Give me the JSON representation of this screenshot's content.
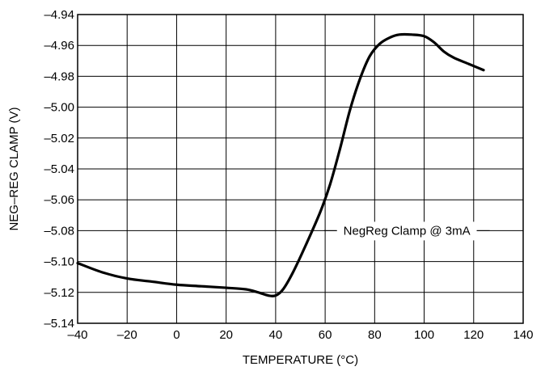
{
  "chart_data": {
    "type": "line",
    "title": "",
    "xlabel": "TEMPERATURE (°C)",
    "ylabel": "NEG–REG CLAMP (V)",
    "xlim": [
      -40,
      140
    ],
    "ylim": [
      -5.14,
      -4.94
    ],
    "xticks": [
      -40,
      -20,
      0,
      20,
      40,
      60,
      80,
      100,
      120,
      140
    ],
    "yticks": [
      -4.94,
      -4.96,
      -4.98,
      -5.0,
      -5.02,
      -5.04,
      -5.06,
      -5.08,
      -5.1,
      -5.12,
      -5.14
    ],
    "xtick_labels": [
      "–40",
      "–20",
      "0",
      "20",
      "40",
      "60",
      "80",
      "100",
      "120",
      "140"
    ],
    "ytick_labels": [
      "–4.94",
      "–4.96",
      "–4.98",
      "–5.00",
      "–5.02",
      "–5.04",
      "–5.06",
      "–5.08",
      "–5.10",
      "–5.12",
      "–5.14"
    ],
    "grid": true,
    "annotation": {
      "text": "NegReg Clamp @ 3mA",
      "leader_x": [
        85,
        101
      ],
      "y": -5.08
    },
    "series": [
      {
        "x": [
          -40,
          -30,
          -20,
          -10,
          0,
          10,
          20,
          28,
          33,
          37,
          40,
          43,
          47,
          52,
          58,
          62,
          66,
          70,
          74,
          78,
          82,
          86,
          90,
          95,
          100,
          104,
          108,
          112,
          118,
          124
        ],
        "y": [
          -5.101,
          -5.107,
          -5.111,
          -5.113,
          -5.115,
          -5.116,
          -5.117,
          -5.118,
          -5.12,
          -5.122,
          -5.122,
          -5.118,
          -5.107,
          -5.09,
          -5.068,
          -5.05,
          -5.027,
          -5.002,
          -4.982,
          -4.967,
          -4.959,
          -4.955,
          -4.953,
          -4.953,
          -4.954,
          -4.958,
          -4.964,
          -4.968,
          -4.972,
          -4.976
        ]
      }
    ]
  }
}
